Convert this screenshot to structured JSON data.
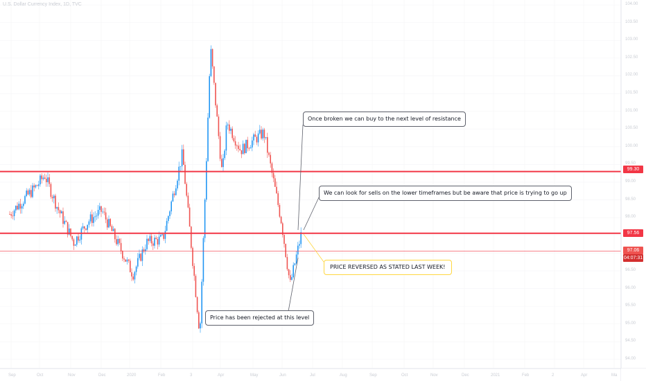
{
  "header": {
    "symbol_title": "U.S. Dollar Currency Index, 1D, TVC"
  },
  "colors": {
    "up": "#2196f3",
    "down": "#ef5350",
    "line": "#f23645",
    "countdown_bg": "#d32f2f"
  },
  "annotations": [
    {
      "id": "break",
      "text": "Once broken we can buy to the next level of resistance"
    },
    {
      "id": "sells",
      "text": "We can look for sells on the lower timeframes but be aware that price is trying to go up"
    },
    {
      "id": "reversed",
      "text": "PRICE REVERSED AS STATED LAST WEEK!"
    },
    {
      "id": "rejected",
      "text": "Price has been rejected at this level"
    }
  ],
  "price_labels": {
    "upper": "99.30",
    "lower": "97.56",
    "last": "97.06",
    "countdown": "04:07:31"
  },
  "chart_data": {
    "type": "candlestick",
    "title": "U.S. Dollar Currency Index, 1D, TVC",
    "y_axis": {
      "ticks": [
        "104.00",
        "103.50",
        "103.00",
        "102.50",
        "102.00",
        "101.50",
        "101.00",
        "100.50",
        "100.00",
        "99.50",
        "99.00",
        "98.50",
        "98.00",
        "97.50",
        "97.00",
        "96.50",
        "96.00",
        "95.50",
        "95.00",
        "94.50",
        "94.00"
      ],
      "ylim": [
        93.9,
        104.1
      ]
    },
    "x_axis": {
      "ticks": [
        "Sep",
        "Oct",
        "Nov",
        "Dec",
        "2020",
        "Feb",
        "3",
        "Apr",
        "May",
        "Jun",
        "Jul",
        "Aug",
        "Sep",
        "Oct",
        "Nov",
        "Dec",
        "2021",
        "Feb",
        "2",
        "Apr",
        "Ma"
      ]
    },
    "horizontal_lines": [
      {
        "label": "99.30",
        "value": 99.3
      },
      {
        "label": "97.56",
        "value": 97.56
      },
      {
        "label": "97.06",
        "value": 97.06
      }
    ],
    "series": [
      {
        "date": "2019-08-26",
        "close": 98.1
      },
      {
        "date": "2019-09-09",
        "close": 98.5
      },
      {
        "date": "2019-09-23",
        "close": 98.9
      },
      {
        "date": "2019-10-01",
        "close": 99.2
      },
      {
        "date": "2019-10-14",
        "close": 98.3
      },
      {
        "date": "2019-10-31",
        "close": 97.3
      },
      {
        "date": "2019-11-15",
        "close": 97.9
      },
      {
        "date": "2019-11-29",
        "close": 98.2
      },
      {
        "date": "2019-12-13",
        "close": 97.4
      },
      {
        "date": "2019-12-31",
        "close": 96.4
      },
      {
        "date": "2020-01-14",
        "close": 97.3
      },
      {
        "date": "2020-01-31",
        "close": 97.4
      },
      {
        "date": "2020-02-20",
        "close": 99.8
      },
      {
        "date": "2020-03-09",
        "close": 94.7
      },
      {
        "date": "2020-03-20",
        "close": 102.8
      },
      {
        "date": "2020-04-01",
        "close": 99.2
      },
      {
        "date": "2020-04-06",
        "close": 100.7
      },
      {
        "date": "2020-04-20",
        "close": 99.9
      },
      {
        "date": "2020-05-04",
        "close": 100.2
      },
      {
        "date": "2020-05-14",
        "close": 100.4
      },
      {
        "date": "2020-06-01",
        "close": 97.9
      },
      {
        "date": "2020-06-10",
        "close": 96.1
      },
      {
        "date": "2020-06-22",
        "close": 97.6
      }
    ]
  }
}
